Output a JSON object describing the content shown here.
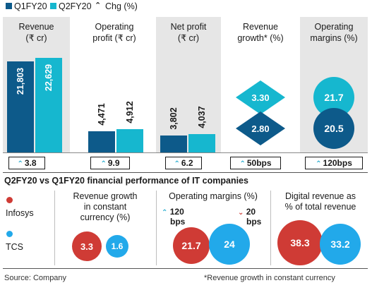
{
  "colors": {
    "q1": "#0d5a8a",
    "q2": "#16b7cf",
    "infosys": "#cf3b35",
    "tcs": "#22a9ea",
    "panel": "#e6e6e6",
    "up_arrow": "#1aa8cc",
    "down_arrow": "#cf3b35"
  },
  "legend": {
    "q1": "Q1FY20",
    "q2": "Q2FY20",
    "chg": "Chg (%)"
  },
  "chart_data": [
    {
      "type": "bar",
      "categories": [
        "Revenue (₹ cr)",
        "Operating profit (₹ cr)",
        "Net profit (₹ cr)",
        "Revenue growth* (%)",
        "Operating margins (%)"
      ],
      "series": [
        {
          "name": "Q1FY20",
          "values": [
            21803,
            4471,
            3802,
            2.8,
            20.5
          ],
          "labels": [
            "21,803",
            "4,471",
            "3,802",
            "2.80",
            "20.5"
          ]
        },
        {
          "name": "Q2FY20",
          "values": [
            22629,
            4912,
            4037,
            3.3,
            21.7
          ],
          "labels": [
            "22,629",
            "4,912",
            "4,037",
            "3.30",
            "21.7"
          ]
        }
      ],
      "changes": [
        "3.8",
        "9.9",
        "6.2",
        "50bps",
        "120bps"
      ],
      "column_titles": [
        [
          "Revenue",
          "(₹ cr)"
        ],
        [
          "Operating",
          "profit (₹ cr)"
        ],
        [
          "Net profit",
          "(₹ cr)"
        ],
        [
          "Revenue",
          "growth* (%)"
        ],
        [
          "Operating",
          "margins (%)"
        ]
      ]
    },
    {
      "type": "bubble",
      "title": "Q2FY20 vs Q1FY20 financial performance of IT companies",
      "companies": [
        "Infosys",
        "TCS"
      ],
      "groups": [
        {
          "title": [
            "Revenue growth",
            "in constant",
            "currency (%)"
          ],
          "values": [
            3.3,
            1.6
          ],
          "labels": [
            "3.3",
            "1.6"
          ]
        },
        {
          "title": [
            "Operating margins (%)"
          ],
          "values": [
            21.7,
            24
          ],
          "labels": [
            "21.7",
            "24"
          ],
          "changes": [
            {
              "dir": "up",
              "value": "120",
              "unit": "bps"
            },
            {
              "dir": "down",
              "value": "20",
              "unit": "bps"
            }
          ]
        },
        {
          "title": [
            "Digital revenue as",
            "% of  total revenue"
          ],
          "values": [
            38.3,
            33.2
          ],
          "labels": [
            "38.3",
            "33.2"
          ]
        }
      ]
    }
  ],
  "footer": {
    "source": "Source: Company",
    "note": "*Revenue growth in constant currency"
  }
}
